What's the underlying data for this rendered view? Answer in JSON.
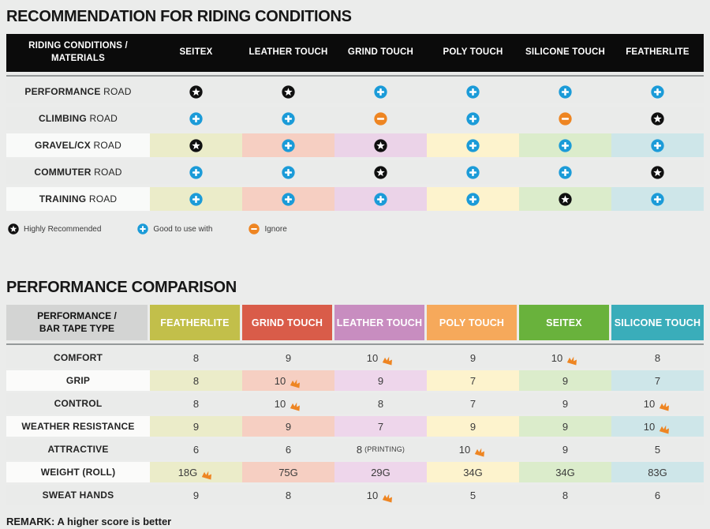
{
  "colors": {
    "page_bg": "#ebeceb",
    "star_bg": "#101010",
    "plus_bg": "#1b9bd8",
    "minus_bg": "#ee8522",
    "crown": "#ee8522",
    "header1_bg": "#0b0b0b",
    "header2_label_bg": "#d3d4d3",
    "rule": "#95999a"
  },
  "table1": {
    "title": "RECOMMENDATION FOR RIDING CONDITIONS",
    "header_label": [
      "RIDING CONDITIONS /",
      "MATERIALS"
    ],
    "columns": [
      "SEITEX",
      "LEATHER TOUCH",
      "GRIND TOUCH",
      "POLY TOUCH",
      "SILICONE TOUCH",
      "FEATHERLITE"
    ],
    "tints": [
      "#ebecc9",
      "#f6cfc2",
      "#ebd3e8",
      "#fdf3cd",
      "#dbeccb",
      "#cee6e9"
    ],
    "rows": [
      {
        "label_bold": "PERFORMANCE",
        "label_rest": "ROAD",
        "tinted": false,
        "cells": [
          "star",
          "star",
          "plus",
          "plus",
          "plus",
          "plus"
        ]
      },
      {
        "label_bold": "CLIMBING",
        "label_rest": "ROAD",
        "tinted": false,
        "cells": [
          "plus",
          "plus",
          "minus",
          "plus",
          "minus",
          "star"
        ]
      },
      {
        "label_bold": "GRAVEL/CX",
        "label_rest": "ROAD",
        "tinted": true,
        "cells": [
          "star",
          "plus",
          "star",
          "plus",
          "plus",
          "plus"
        ]
      },
      {
        "label_bold": "COMMUTER",
        "label_rest": "ROAD",
        "tinted": false,
        "cells": [
          "plus",
          "plus",
          "star",
          "plus",
          "plus",
          "star"
        ]
      },
      {
        "label_bold": "TRAINING",
        "label_rest": "ROAD",
        "tinted": true,
        "cells": [
          "plus",
          "plus",
          "plus",
          "plus",
          "star",
          "plus"
        ]
      }
    ]
  },
  "legend": [
    {
      "icon": "star",
      "label": "Highly Recommended"
    },
    {
      "icon": "plus",
      "label": "Good to use with"
    },
    {
      "icon": "minus",
      "label": "Ignore"
    }
  ],
  "table2": {
    "title": "PERFORMANCE COMPARISON",
    "header_label": [
      "PERFORMANCE /",
      "BAR TAPE TYPE"
    ],
    "columns": [
      {
        "label": "FEATHERLITE",
        "color": "#c2bf4a",
        "tint": "#ebecc9"
      },
      {
        "label": "GRIND TOUCH",
        "color": "#d95c49",
        "tint": "#f6cfc2"
      },
      {
        "label": "LEATHER TOUCH",
        "color": "#c88dc0",
        "tint": "#eed6eb"
      },
      {
        "label": "POLY TOUCH",
        "color": "#f6a95b",
        "tint": "#fdf3cd"
      },
      {
        "label": "SEITEX",
        "color": "#69b23c",
        "tint": "#dbeccb"
      },
      {
        "label": "SILICONE TOUCH",
        "color": "#3aadba",
        "tint": "#cee6e9"
      }
    ],
    "rows": [
      {
        "label": "COMFORT",
        "tinted": false,
        "cells": [
          {
            "v": "8"
          },
          {
            "v": "9"
          },
          {
            "v": "10",
            "crown": true
          },
          {
            "v": "9"
          },
          {
            "v": "10",
            "crown": true
          },
          {
            "v": "8"
          }
        ]
      },
      {
        "label": "GRIP",
        "tinted": true,
        "cells": [
          {
            "v": "8"
          },
          {
            "v": "10",
            "crown": true
          },
          {
            "v": "9"
          },
          {
            "v": "7"
          },
          {
            "v": "9"
          },
          {
            "v": "7"
          }
        ]
      },
      {
        "label": "CONTROL",
        "tinted": false,
        "cells": [
          {
            "v": "8"
          },
          {
            "v": "10",
            "crown": true
          },
          {
            "v": "8"
          },
          {
            "v": "7"
          },
          {
            "v": "9"
          },
          {
            "v": "10",
            "crown": true
          }
        ]
      },
      {
        "label": "WEATHER RESISTANCE",
        "tinted": true,
        "cells": [
          {
            "v": "9"
          },
          {
            "v": "9"
          },
          {
            "v": "7"
          },
          {
            "v": "9"
          },
          {
            "v": "9"
          },
          {
            "v": "10",
            "crown": true
          }
        ]
      },
      {
        "label": "ATTRACTIVE",
        "tinted": false,
        "cells": [
          {
            "v": "6"
          },
          {
            "v": "6"
          },
          {
            "v": "8",
            "suffix": "(PRINTING)"
          },
          {
            "v": "10",
            "crown": true
          },
          {
            "v": "9"
          },
          {
            "v": "5"
          }
        ]
      },
      {
        "label": "WEIGHT (ROLL)",
        "tinted": true,
        "cells": [
          {
            "v": "18G",
            "crown": true
          },
          {
            "v": "75G"
          },
          {
            "v": "29G"
          },
          {
            "v": "34G"
          },
          {
            "v": "34G"
          },
          {
            "v": "83G"
          }
        ]
      },
      {
        "label": "SWEAT HANDS",
        "tinted": false,
        "cells": [
          {
            "v": "9"
          },
          {
            "v": "8"
          },
          {
            "v": "10",
            "crown": true
          },
          {
            "v": "5"
          },
          {
            "v": "8"
          },
          {
            "v": "6"
          }
        ]
      }
    ]
  },
  "remark": "REMARK: A higher score is better"
}
